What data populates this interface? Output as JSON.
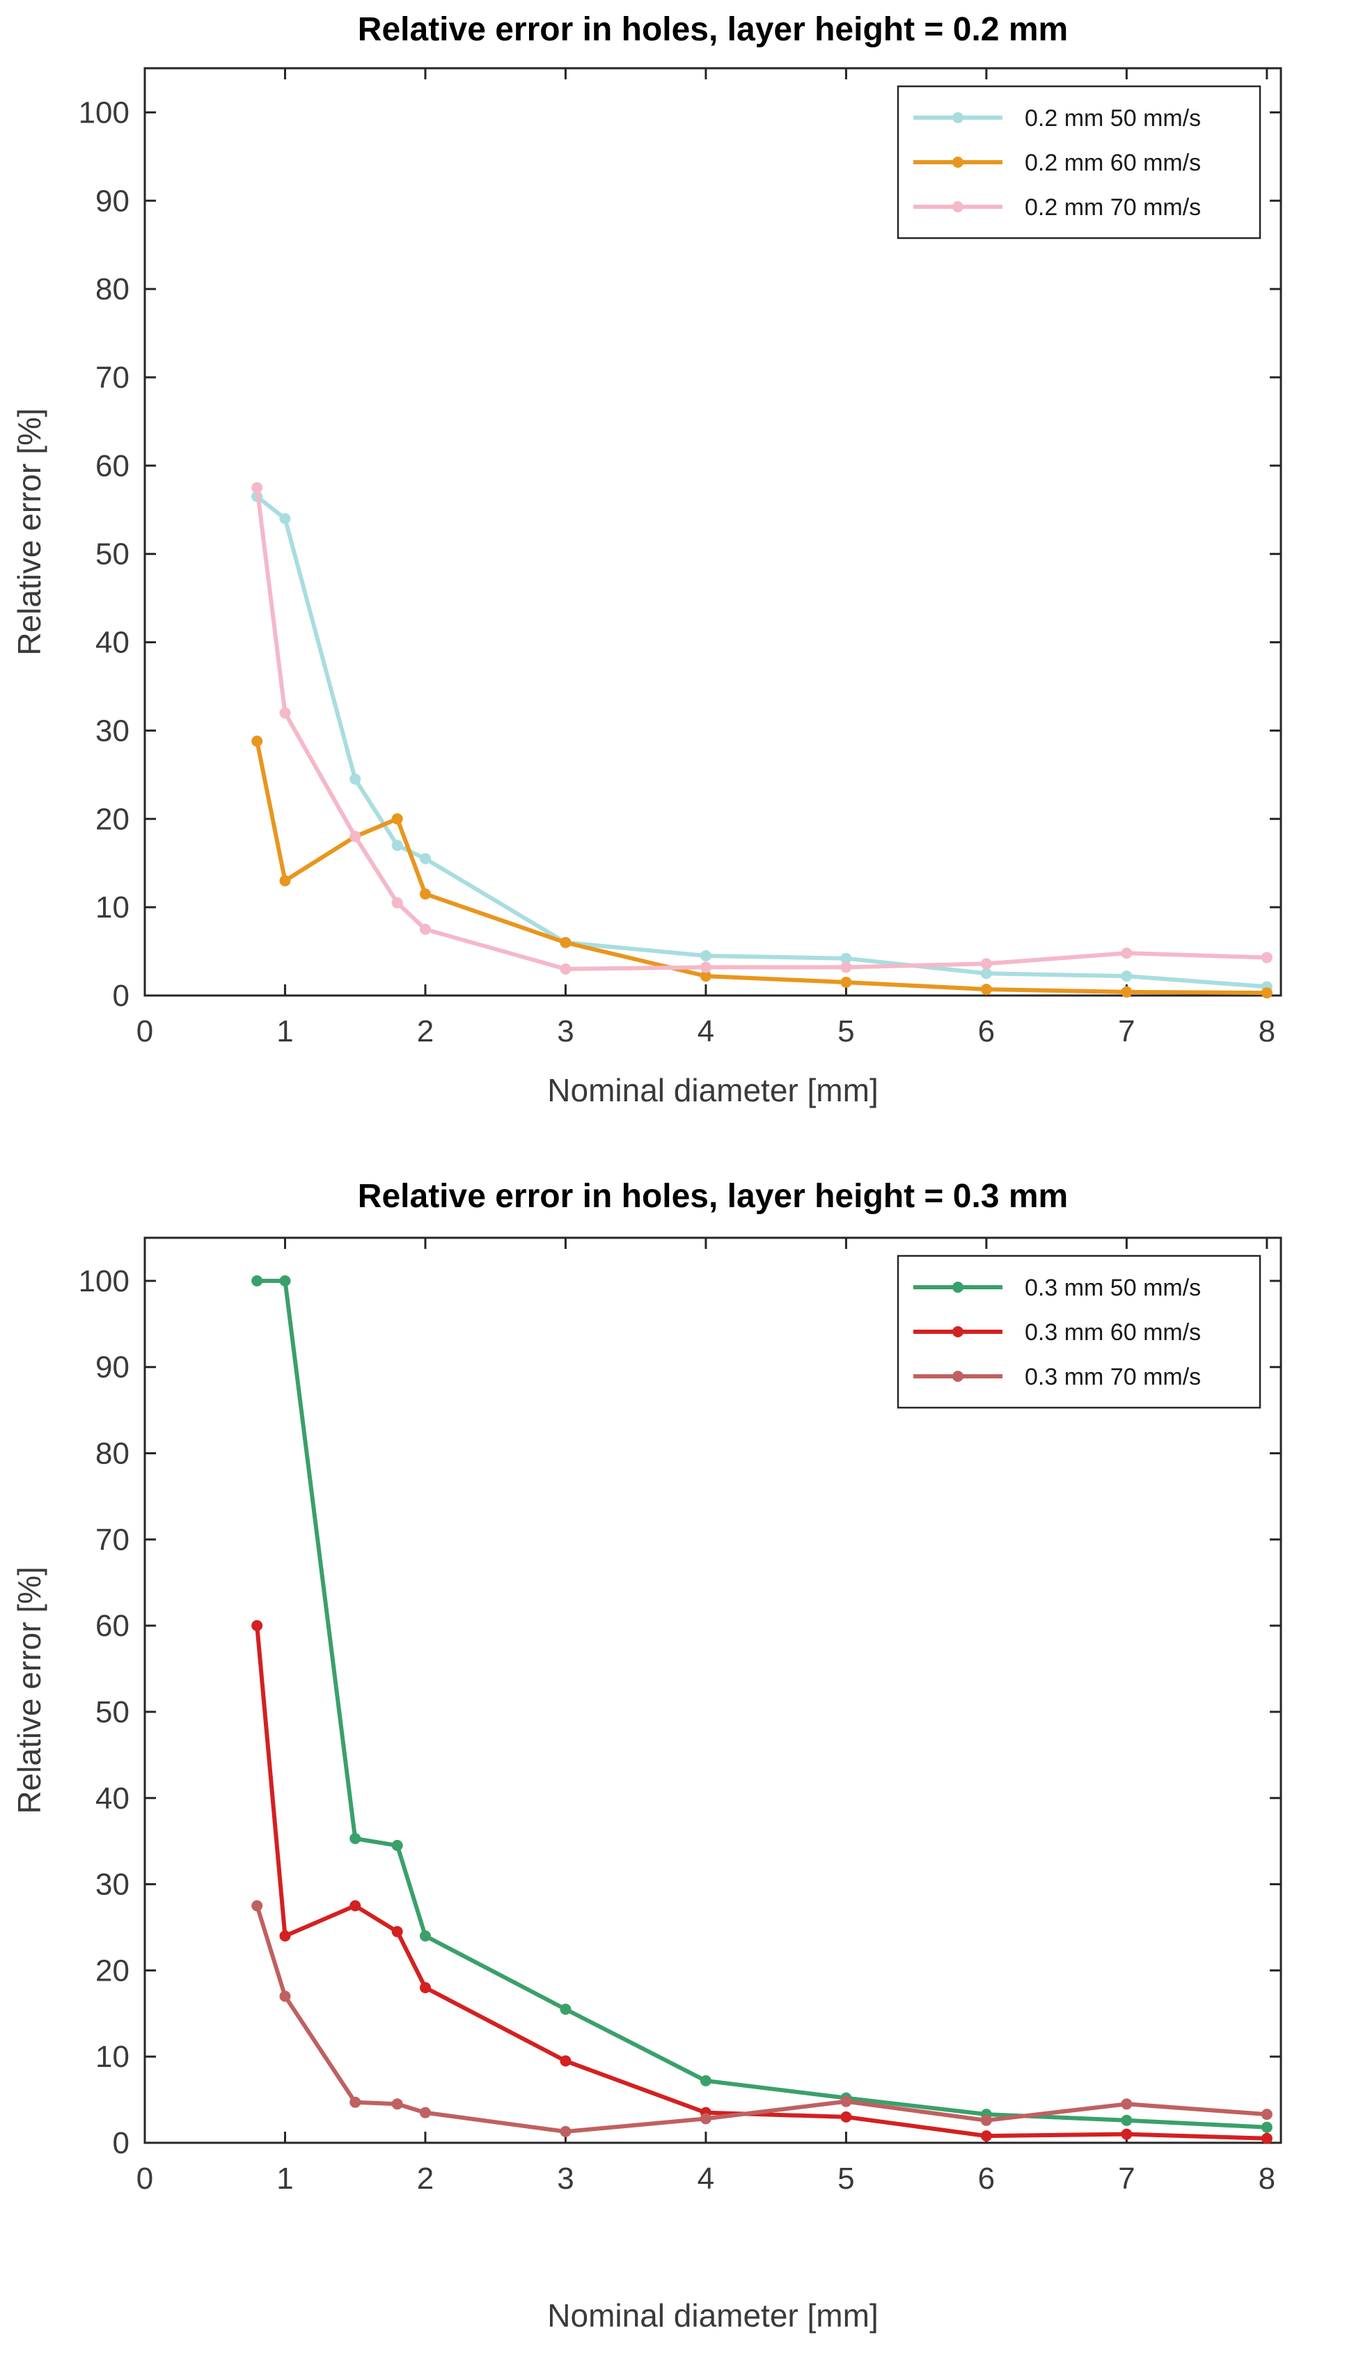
{
  "chart_data": [
    {
      "type": "line",
      "title": "Relative error in holes, layer height = 0.2 mm",
      "xlabel": "Nominal diameter [mm]",
      "ylabel": "Relative error [%]",
      "xlim": [
        0,
        8.1
      ],
      "ylim": [
        0,
        105
      ],
      "xticks": [
        0,
        1,
        2,
        3,
        4,
        5,
        6,
        7,
        8
      ],
      "yticks": [
        0,
        10,
        20,
        30,
        40,
        50,
        60,
        70,
        80,
        90,
        100
      ],
      "legend_position": "top-right",
      "x": [
        0.8,
        1,
        1.5,
        1.8,
        2,
        3,
        4,
        5,
        6,
        7,
        8
      ],
      "series": [
        {
          "name": "0.2 mm 50 mm/s",
          "color": "#a8dde0",
          "values": [
            56.5,
            54,
            24.5,
            17,
            15.5,
            6,
            4.5,
            4.2,
            2.5,
            2.2,
            1
          ]
        },
        {
          "name": "0.2 mm 60 mm/s",
          "color": "#e8961e",
          "values": [
            28.8,
            13,
            18,
            20,
            11.5,
            6,
            2.2,
            1.5,
            0.7,
            0.4,
            0.3
          ]
        },
        {
          "name": "0.2 mm 70 mm/s",
          "color": "#f5b8c8",
          "values": [
            57.5,
            32,
            18,
            10.5,
            7.5,
            3,
            3.2,
            3.2,
            3.6,
            4.8,
            4.3
          ]
        }
      ]
    },
    {
      "type": "line",
      "title": "Relative error in holes, layer height = 0.3 mm",
      "xlabel": "Nominal diameter [mm]",
      "ylabel": "Relative error [%]",
      "xlim": [
        0,
        8.1
      ],
      "ylim": [
        0,
        105
      ],
      "xticks": [
        0,
        1,
        2,
        3,
        4,
        5,
        6,
        7,
        8
      ],
      "yticks": [
        0,
        10,
        20,
        30,
        40,
        50,
        60,
        70,
        80,
        90,
        100
      ],
      "legend_position": "top-right",
      "x": [
        0.8,
        1,
        1.5,
        1.8,
        2,
        3,
        4,
        5,
        6,
        7,
        8
      ],
      "series": [
        {
          "name": "0.3 mm 50 mm/s",
          "color": "#3aa06a",
          "values": [
            100,
            100,
            35.3,
            34.5,
            24,
            15.5,
            7.2,
            5.2,
            3.3,
            2.6,
            1.8
          ]
        },
        {
          "name": "0.3 mm 60 mm/s",
          "color": "#d42020",
          "values": [
            60,
            24,
            27.5,
            24.5,
            18,
            9.5,
            3.5,
            3,
            0.8,
            1,
            0.5
          ]
        },
        {
          "name": "0.3 mm 70 mm/s",
          "color": "#c06060",
          "values": [
            27.5,
            17,
            4.7,
            4.5,
            3.5,
            1.3,
            2.8,
            4.8,
            2.6,
            4.5,
            3.3
          ]
        }
      ]
    }
  ]
}
